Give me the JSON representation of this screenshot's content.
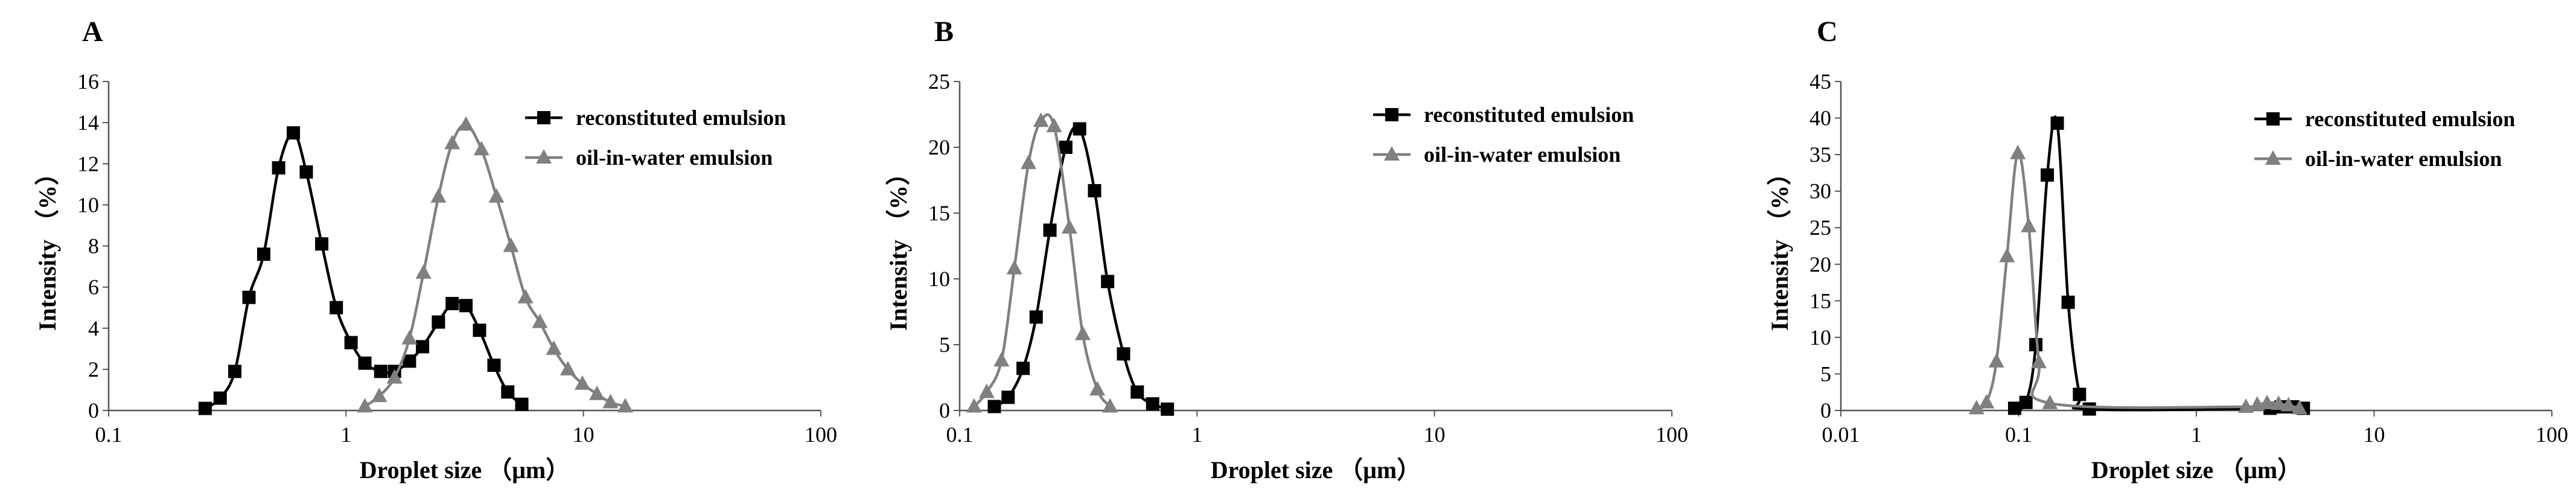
{
  "chart_data": [
    {
      "type": "line",
      "panel_label": "A",
      "xlabel": "Droplet size （μm）",
      "ylabel": "Intensity （%）",
      "xscale": "log",
      "xlim": [
        0.1,
        100
      ],
      "ylim": [
        0,
        16
      ],
      "x_ticks": [
        0.1,
        1,
        10,
        100
      ],
      "x_tick_labels": [
        "0.1",
        "1",
        "10",
        "100"
      ],
      "y_ticks": [
        0,
        2,
        4,
        6,
        8,
        10,
        12,
        14,
        16
      ],
      "grid": false,
      "legend_position": "top-right",
      "series": [
        {
          "name": "reconstituted emulsion",
          "color": "#000000",
          "marker": "square",
          "x": [
            0.255,
            0.295,
            0.34,
            0.39,
            0.45,
            0.52,
            0.6,
            0.68,
            0.79,
            0.91,
            1.05,
            1.2,
            1.4,
            1.6,
            1.85,
            2.1,
            2.45,
            2.8,
            3.2,
            3.65,
            4.2,
            4.8,
            5.5
          ],
          "y": [
            0.1,
            0.6,
            1.9,
            5.5,
            7.6,
            11.8,
            13.5,
            11.6,
            8.1,
            5.0,
            3.3,
            2.3,
            1.9,
            1.9,
            2.4,
            3.1,
            4.3,
            5.2,
            5.1,
            3.9,
            2.2,
            0.9,
            0.3
          ]
        },
        {
          "name": "oil-in-water emulsion",
          "color": "#808080",
          "marker": "triangle",
          "x": [
            1.2,
            1.38,
            1.6,
            1.85,
            2.12,
            2.45,
            2.8,
            3.2,
            3.72,
            4.3,
            4.95,
            5.7,
            6.55,
            7.5,
            8.6,
            9.9,
            11.4,
            13.0,
            15.0
          ],
          "y": [
            0.2,
            0.7,
            1.6,
            3.5,
            6.7,
            10.4,
            13.0,
            13.9,
            12.7,
            10.4,
            8.0,
            5.5,
            4.3,
            3.0,
            2.0,
            1.3,
            0.8,
            0.4,
            0.2
          ]
        }
      ]
    },
    {
      "type": "line",
      "panel_label": "B",
      "xlabel": "Droplet size （μm）",
      "ylabel": "Intensity （%）",
      "xscale": "log",
      "xlim": [
        0.1,
        100
      ],
      "ylim": [
        0,
        25
      ],
      "x_ticks": [
        0.1,
        1,
        10,
        100
      ],
      "x_tick_labels": [
        "0.1",
        "1",
        "10",
        "100"
      ],
      "y_ticks": [
        0,
        5,
        10,
        15,
        20,
        25
      ],
      "grid": false,
      "legend_position": "top-right",
      "series": [
        {
          "name": "reconstituted emulsion",
          "color": "#000000",
          "marker": "square",
          "x": [
            0.14,
            0.16,
            0.185,
            0.21,
            0.24,
            0.28,
            0.32,
            0.37,
            0.42,
            0.49,
            0.56,
            0.65,
            0.75
          ],
          "y": [
            0.3,
            1.0,
            3.2,
            7.1,
            13.7,
            20.0,
            21.4,
            16.7,
            9.8,
            4.3,
            1.4,
            0.5,
            0.1
          ]
        },
        {
          "name": "oil-in-water emulsion",
          "color": "#808080",
          "marker": "triangle",
          "x": [
            0.115,
            0.13,
            0.15,
            0.17,
            0.195,
            0.22,
            0.25,
            0.29,
            0.33,
            0.38,
            0.43
          ],
          "y": [
            0.3,
            1.4,
            3.8,
            10.8,
            18.8,
            22.0,
            21.6,
            13.9,
            5.8,
            1.6,
            0.3
          ]
        }
      ]
    },
    {
      "type": "line",
      "panel_label": "C",
      "xlabel": "Droplet size （μm）",
      "ylabel": "Intensity （%）",
      "xscale": "log",
      "xlim": [
        0.01,
        100
      ],
      "ylim": [
        0,
        45
      ],
      "x_ticks": [
        0.01,
        0.1,
        1,
        10,
        100
      ],
      "x_tick_labels": [
        "0.01",
        "0.1",
        "1",
        "10",
        "100"
      ],
      "y_ticks": [
        0,
        5,
        10,
        15,
        20,
        25,
        30,
        35,
        40,
        45
      ],
      "grid": false,
      "legend_position": "top-right",
      "series": [
        {
          "name": "reconstituted emulsion",
          "color": "#000000",
          "marker": "square",
          "x": [
            0.095,
            0.11,
            0.125,
            0.145,
            0.165,
            0.19,
            0.22,
            0.25,
            2.6,
            3.0,
            3.5,
            4.0
          ],
          "y": [
            0.3,
            1.1,
            9.0,
            32.2,
            39.3,
            14.8,
            2.2,
            0.2,
            0.3,
            0.5,
            0.5,
            0.3
          ]
        },
        {
          "name": "oil-in-water emulsion",
          "color": "#808080",
          "marker": "triangle",
          "x": [
            0.058,
            0.066,
            0.075,
            0.086,
            0.099,
            0.114,
            0.13,
            0.15,
            1.9,
            2.2,
            2.5,
            2.9,
            3.3,
            3.8
          ],
          "y": [
            0.3,
            1.1,
            6.7,
            21.1,
            35.2,
            25.2,
            6.6,
            1.0,
            0.5,
            0.8,
            1.0,
            0.9,
            0.7,
            0.3
          ]
        }
      ]
    }
  ]
}
